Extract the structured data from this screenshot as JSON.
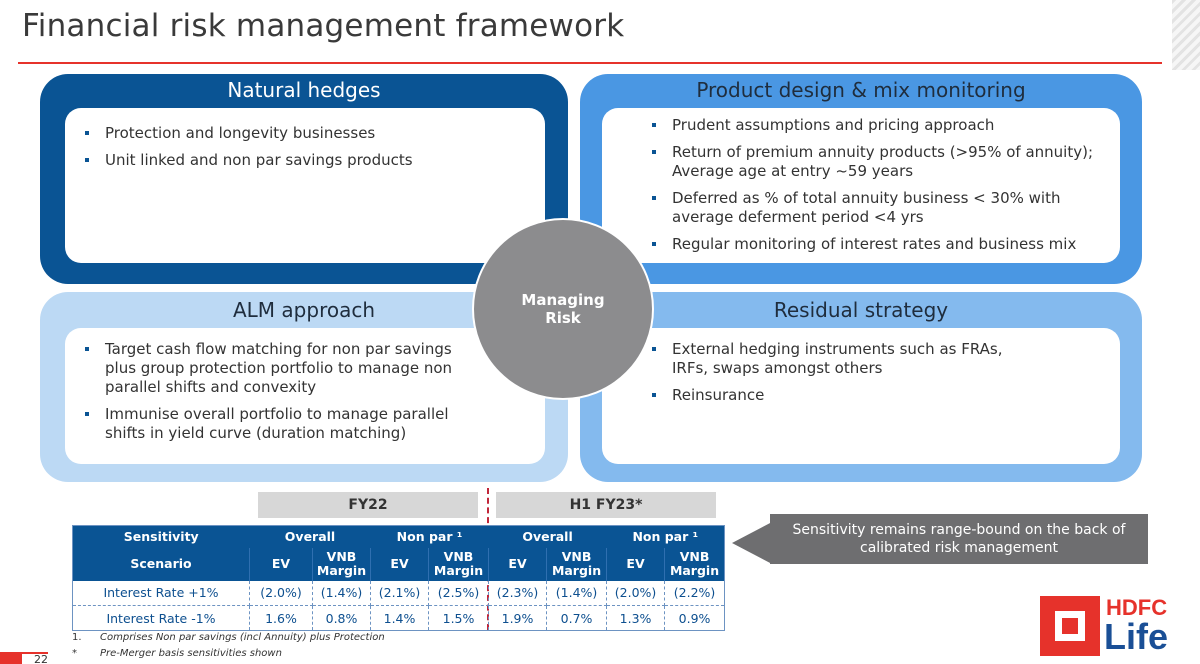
{
  "title": "Financial risk management framework",
  "center": {
    "line1": "Managing",
    "line2": "Risk"
  },
  "quadrants": [
    {
      "heading": "Natural hedges",
      "bullets": [
        "Protection and longevity businesses",
        "Unit linked and non par savings products"
      ]
    },
    {
      "heading": "Product design & mix monitoring",
      "bullets": [
        "Prudent assumptions and pricing approach",
        "Return of premium annuity products (>95% of annuity); Average age at entry ~59 years",
        "Deferred as % of total annuity business < 30% with average deferment period <4 yrs",
        "Regular monitoring of interest rates and business mix"
      ]
    },
    {
      "heading": "ALM approach",
      "bullets": [
        "Target cash flow matching for non par savings plus group protection portfolio to manage non parallel shifts and convexity",
        "Immunise overall portfolio to manage parallel shifts in yield curve (duration matching)"
      ]
    },
    {
      "heading": "Residual strategy",
      "bullets": [
        "External hedging instruments such as FRAs, IRFs, swaps amongst others",
        "Reinsurance"
      ]
    }
  ],
  "periods": {
    "p1": "FY22",
    "p2": "H1 FY23*"
  },
  "table": {
    "h1": [
      "Sensitivity",
      "Overall",
      "Non par ¹",
      "Overall",
      "Non par ¹"
    ],
    "h2": [
      "Scenario",
      "EV",
      "VNB Margin",
      "EV",
      "VNB Margin",
      "EV",
      "VNB Margin",
      "EV",
      "VNB Margin"
    ],
    "rows": [
      [
        "Interest Rate +1%",
        "(2.0%)",
        "(1.4%)",
        "(2.1%)",
        "(2.5%)",
        "(2.3%)",
        "(1.4%)",
        "(2.0%)",
        "(2.2%)"
      ],
      [
        "Interest Rate -1%",
        "1.6%",
        "0.8%",
        "1.4%",
        "1.5%",
        "1.9%",
        "0.7%",
        "1.3%",
        "0.9%"
      ]
    ]
  },
  "callout": "Sensitivity remains range-bound on the back of calibrated risk management",
  "footnotes": [
    {
      "mark": "1.",
      "text": "Comprises Non par savings (incl Annuity) plus Protection"
    },
    {
      "mark": "*",
      "text": "Pre-Merger basis sensitivities shown"
    }
  ],
  "page_number": "22",
  "logo": {
    "line1": "HDFC",
    "line2": "Life"
  },
  "colors": {
    "dark_blue": "#0a5494",
    "mid_blue": "#4a97e3",
    "light_blue": "#bcd9f4",
    "sky_blue": "#84baee",
    "red": "#e6322b",
    "grey": "#8c8c8e"
  }
}
